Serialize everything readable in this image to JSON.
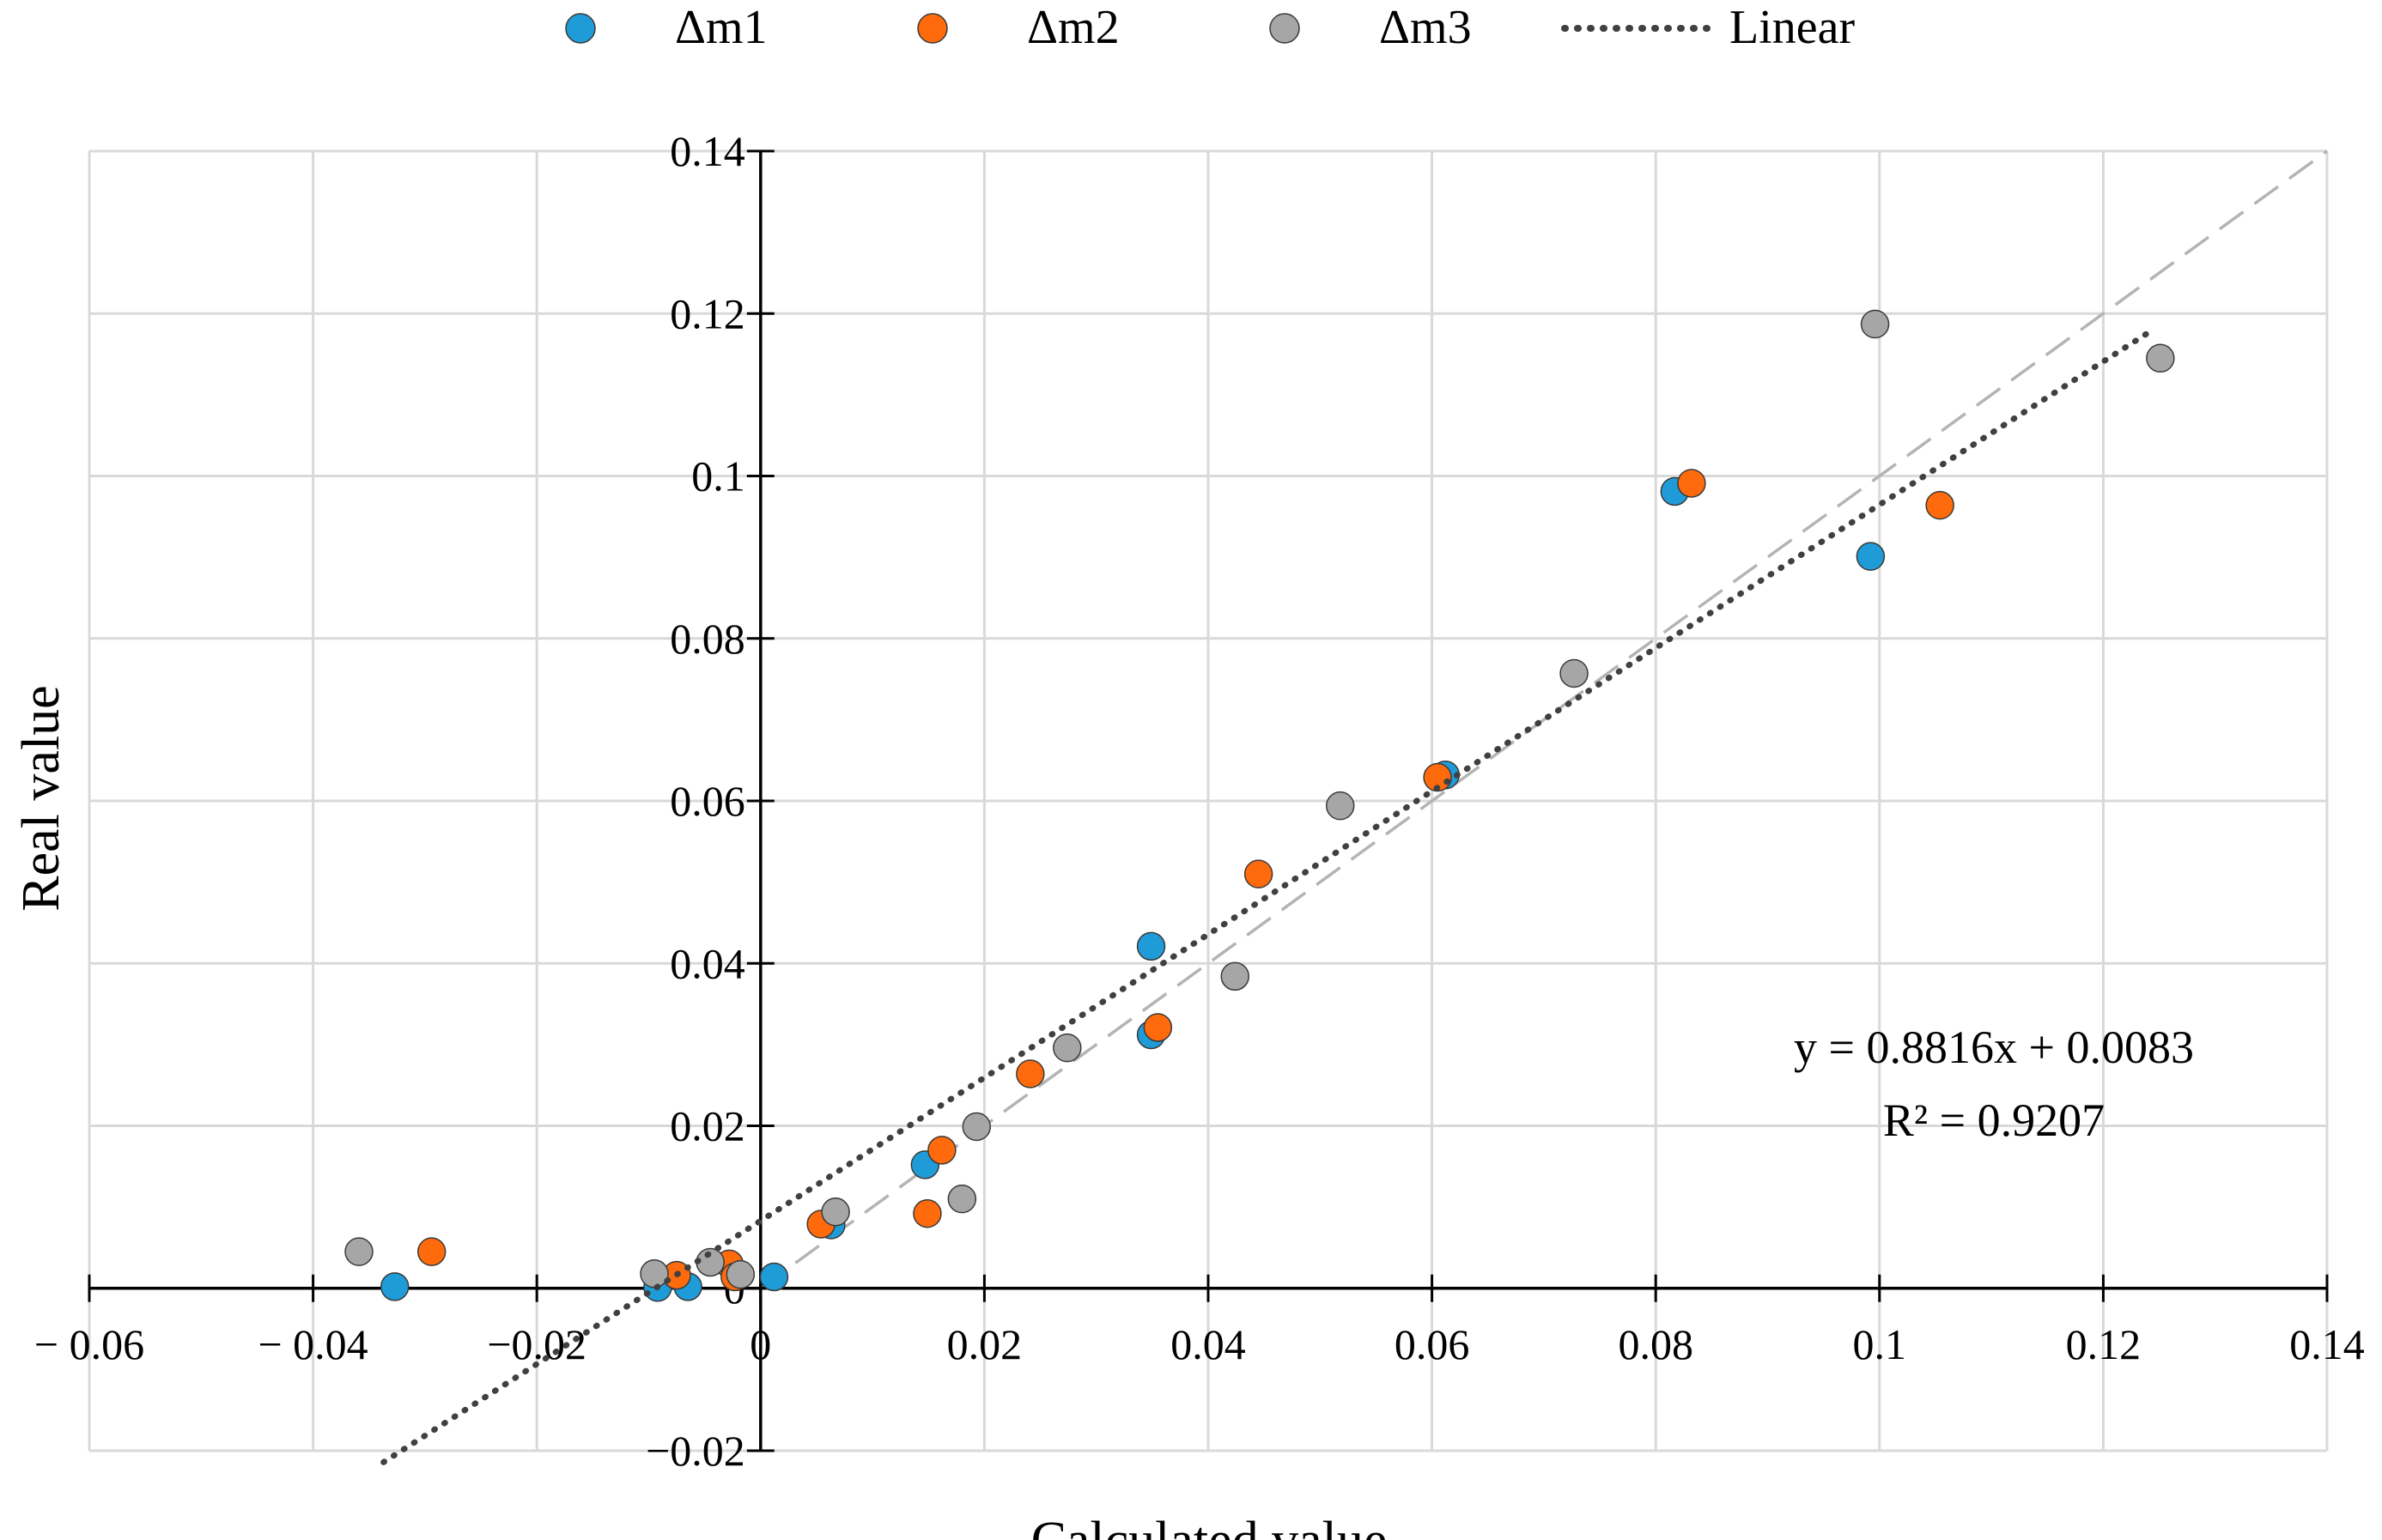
{
  "chart_data": {
    "type": "scatter",
    "title": "",
    "xlabel": "Calculated value",
    "ylabel": "Real value",
    "xlim": [
      -0.06,
      0.14
    ],
    "ylim": [
      -0.02,
      0.14
    ],
    "x_ticks": [
      -0.06,
      -0.04,
      -0.02,
      0,
      0.02,
      0.04,
      0.06,
      0.08,
      0.1,
      0.12,
      0.14
    ],
    "x_tick_labels": [
      "− 0.06",
      "− 0.04",
      "−0.02",
      "0",
      "0.02",
      "0.04",
      "0.06",
      "0.08",
      "0.1",
      "0.12",
      "0.14"
    ],
    "y_ticks": [
      -0.02,
      0,
      0.02,
      0.04,
      0.06,
      0.08,
      0.1,
      0.12,
      0.14
    ],
    "y_tick_labels": [
      "−0.02",
      "0",
      "0.02",
      "0.04",
      "0.06",
      "0.08",
      "0.1",
      "0.12",
      "0.14"
    ],
    "grid": true,
    "legend_position": "top",
    "colors": {
      "dm1": "#1f9bd7",
      "dm2": "#ff6a0c",
      "dm3": "#a6a6a6",
      "trend": "#404040",
      "identity": "#b4b4b4",
      "grid": "#d9d9d9",
      "axis": "#000000"
    },
    "series": [
      {
        "name": "Δm1",
        "color": "#1f9bd7",
        "points": [
          [
            -0.0327,
            0.0002
          ],
          [
            -0.0092,
            0.0001
          ],
          [
            -0.0065,
            0.0002
          ],
          [
            0.0012,
            0.0014
          ],
          [
            0.0063,
            0.0078
          ],
          [
            0.0147,
            0.0152
          ],
          [
            0.0349,
            0.0312
          ],
          [
            0.0349,
            0.0421
          ],
          [
            0.0612,
            0.0632
          ],
          [
            0.0817,
            0.0981
          ],
          [
            0.0992,
            0.0901
          ]
        ]
      },
      {
        "name": "Δm2",
        "color": "#ff6a0c",
        "points": [
          [
            -0.0294,
            0.0045
          ],
          [
            -0.0075,
            0.0016
          ],
          [
            -0.0028,
            0.003
          ],
          [
            -0.0023,
            0.0014
          ],
          [
            0.0054,
            0.0079
          ],
          [
            0.0149,
            0.0092
          ],
          [
            0.0162,
            0.017
          ],
          [
            0.0241,
            0.0264
          ],
          [
            0.0355,
            0.0321
          ],
          [
            0.0445,
            0.051
          ],
          [
            0.0605,
            0.0629
          ],
          [
            0.0832,
            0.0991
          ],
          [
            0.1054,
            0.0964
          ]
        ]
      },
      {
        "name": "Δm3",
        "color": "#a6a6a6",
        "points": [
          [
            -0.0359,
            0.0045
          ],
          [
            -0.0095,
            0.0018
          ],
          [
            -0.0045,
            0.0032
          ],
          [
            -0.0018,
            0.0017
          ],
          [
            0.0067,
            0.0094
          ],
          [
            0.018,
            0.011
          ],
          [
            0.0193,
            0.0199
          ],
          [
            0.0274,
            0.0296
          ],
          [
            0.0424,
            0.0384
          ],
          [
            0.0518,
            0.0594
          ],
          [
            0.0727,
            0.0757
          ],
          [
            0.0996,
            0.1187
          ],
          [
            0.1251,
            0.1145
          ]
        ]
      }
    ],
    "trendline": {
      "name": "Linear",
      "slope": 0.8816,
      "intercept": 0.0083,
      "x_range": [
        -0.0337,
        0.1243
      ]
    },
    "identity_line": {
      "x_range": [
        0,
        0.14
      ]
    },
    "equation_text": "y = 0.8816x + 0.0083",
    "r2_text": "R² = 0.9207",
    "legend": [
      "Δm1",
      "Δm2",
      "Δm3",
      "Linear"
    ]
  }
}
